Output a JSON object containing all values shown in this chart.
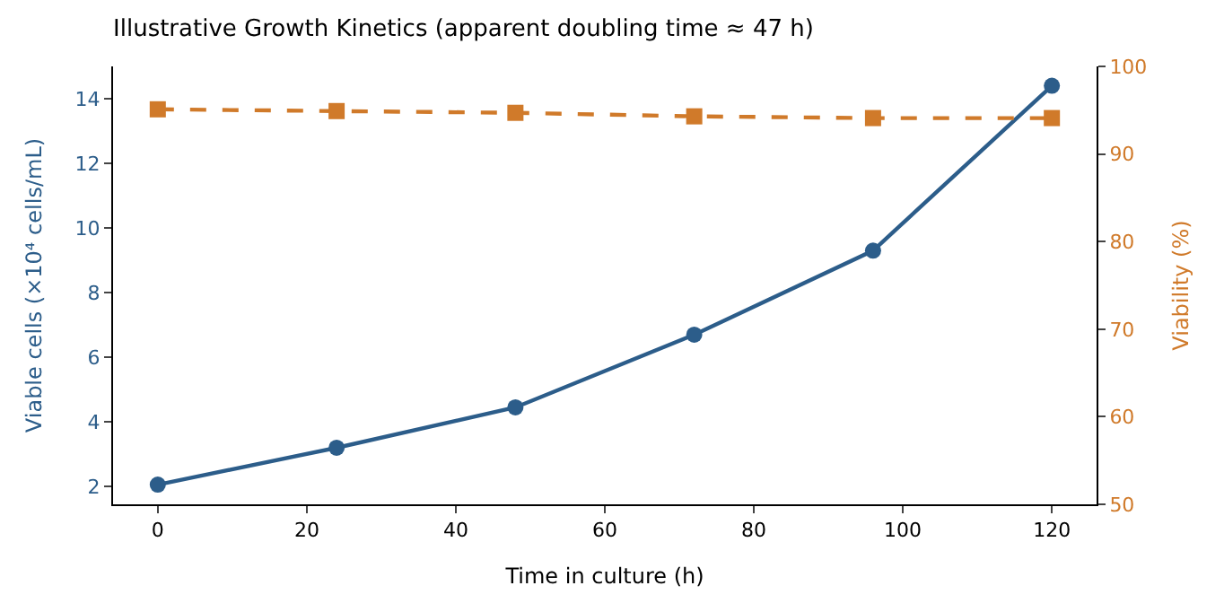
{
  "chart_data": {
    "type": "line",
    "title": "Illustrative Growth Kinetics (apparent doubling time ≈ 47 h)",
    "xlabel": "Time in culture (h)",
    "ylabel": "Viable cells (×10⁴ cells/mL)",
    "y2label": "Viability (%)",
    "x": [
      0,
      24,
      48,
      72,
      96,
      120
    ],
    "series": [
      {
        "color": "#2c5d8a",
        "values": [
          2.06,
          3.2,
          4.45,
          6.7,
          9.3,
          14.4
        ],
        "marker": "circle",
        "line_style": "solid"
      },
      {
        "color": "#d07a2a",
        "values": [
          95.1,
          94.9,
          94.7,
          94.3,
          94.1,
          94.1
        ],
        "marker": "square",
        "line_style": "dashed",
        "axis": "y2"
      }
    ],
    "xlim": [
      -6,
      126
    ],
    "xticks": [
      0,
      20,
      40,
      60,
      80,
      100,
      120
    ],
    "ylim": [
      1.45,
      15.0
    ],
    "yticks": [
      2,
      4,
      6,
      8,
      10,
      12,
      14
    ],
    "y2lim": [
      50,
      100
    ],
    "y2ticks": [
      50,
      60,
      70,
      80,
      90,
      100
    ]
  }
}
